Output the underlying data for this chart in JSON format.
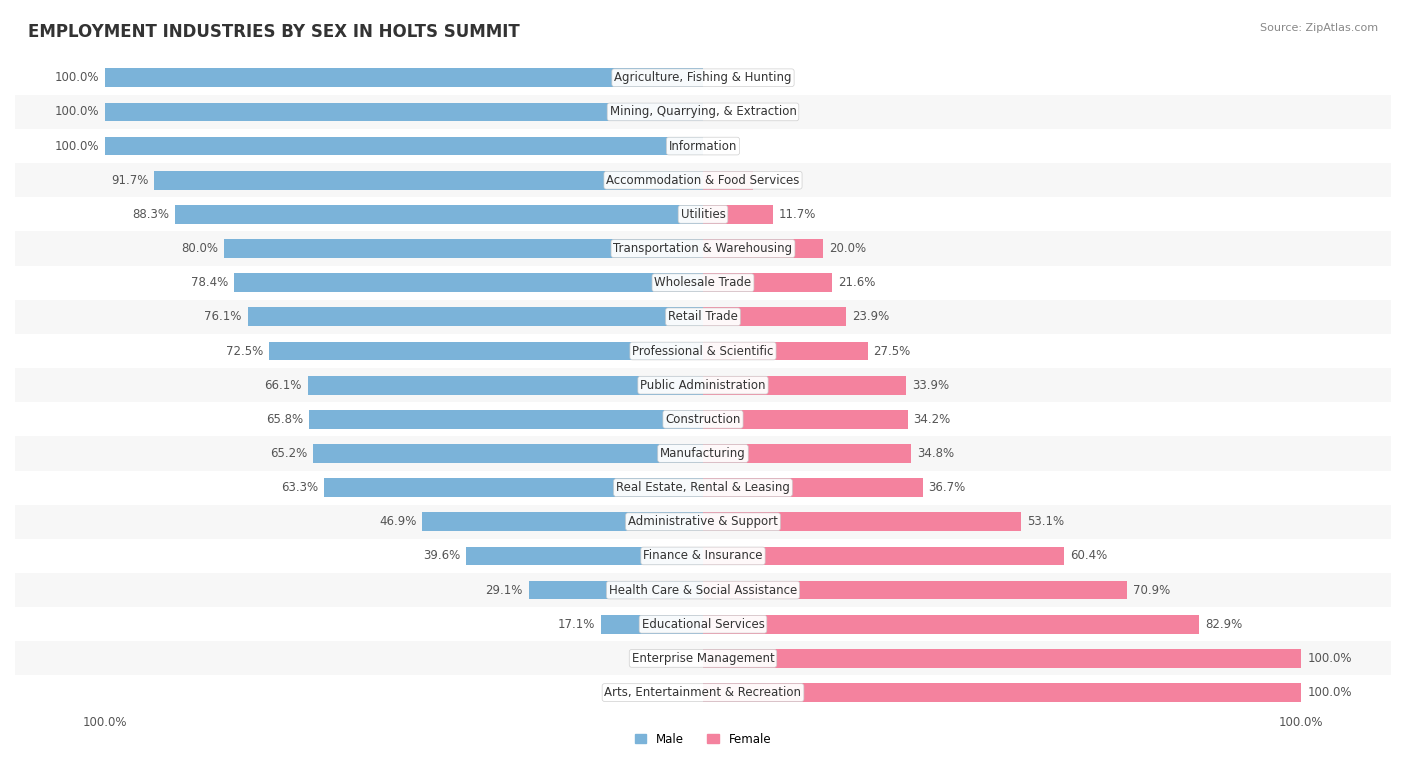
{
  "title": "EMPLOYMENT INDUSTRIES BY SEX IN HOLTS SUMMIT",
  "source": "Source: ZipAtlas.com",
  "industries": [
    "Agriculture, Fishing & Hunting",
    "Mining, Quarrying, & Extraction",
    "Information",
    "Accommodation & Food Services",
    "Utilities",
    "Transportation & Warehousing",
    "Wholesale Trade",
    "Retail Trade",
    "Professional & Scientific",
    "Public Administration",
    "Construction",
    "Manufacturing",
    "Real Estate, Rental & Leasing",
    "Administrative & Support",
    "Finance & Insurance",
    "Health Care & Social Assistance",
    "Educational Services",
    "Enterprise Management",
    "Arts, Entertainment & Recreation"
  ],
  "male_pct": [
    100.0,
    100.0,
    100.0,
    91.7,
    88.3,
    80.0,
    78.4,
    76.1,
    72.5,
    66.1,
    65.8,
    65.2,
    63.3,
    46.9,
    39.6,
    29.1,
    17.1,
    0.0,
    0.0
  ],
  "female_pct": [
    0.0,
    0.0,
    0.0,
    8.3,
    11.7,
    20.0,
    21.6,
    23.9,
    27.5,
    33.9,
    34.2,
    34.8,
    36.7,
    53.1,
    60.4,
    70.9,
    82.9,
    100.0,
    100.0
  ],
  "male_color": "#7bb3d9",
  "female_color": "#f4829e",
  "bar_bg_color": "#f0f0f0",
  "row_bg_color": "#ffffff",
  "alt_row_bg_color": "#f7f7f7",
  "bar_height": 0.55,
  "label_fontsize": 8.5,
  "title_fontsize": 12,
  "source_fontsize": 8
}
